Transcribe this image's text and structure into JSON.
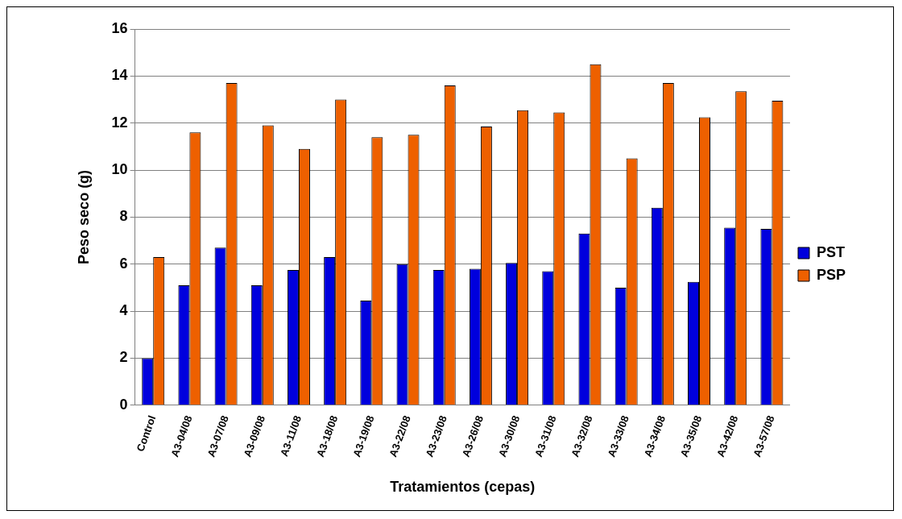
{
  "chart_data": {
    "type": "bar",
    "xlabel": "Tratamientos (cepas)",
    "ylabel": "Peso seco (g)",
    "categories": [
      "Control",
      "A3-04/08",
      "A3-07/08",
      "A3-09/08",
      "A3-11/08",
      "A3-18/08",
      "A3-19/08",
      "A3-22/08",
      "A3-23/08",
      "A3-26/08",
      "A3-30/08",
      "A3-31/08",
      "A3-32/08",
      "A3-33/08",
      "A3-34/08",
      "A3-35/08",
      "A3-42/08",
      "A3-57/08"
    ],
    "series": [
      {
        "name": "PST",
        "color": "#0000dd",
        "values": [
          2.0,
          5.1,
          6.7,
          5.1,
          5.75,
          6.3,
          4.45,
          6.0,
          5.75,
          5.8,
          6.05,
          5.7,
          7.3,
          5.0,
          8.4,
          5.25,
          7.55,
          7.5
        ]
      },
      {
        "name": "PSP",
        "color": "#ee6000",
        "values": [
          6.3,
          11.6,
          13.7,
          11.9,
          10.9,
          13.0,
          11.4,
          11.5,
          13.6,
          11.85,
          12.55,
          12.45,
          14.5,
          10.5,
          13.7,
          12.25,
          13.35,
          12.95
        ]
      }
    ],
    "ylim": [
      0,
      16
    ],
    "yticks": [
      0,
      2,
      4,
      6,
      8,
      10,
      12,
      14,
      16
    ],
    "grid": "y",
    "legend": "right"
  }
}
